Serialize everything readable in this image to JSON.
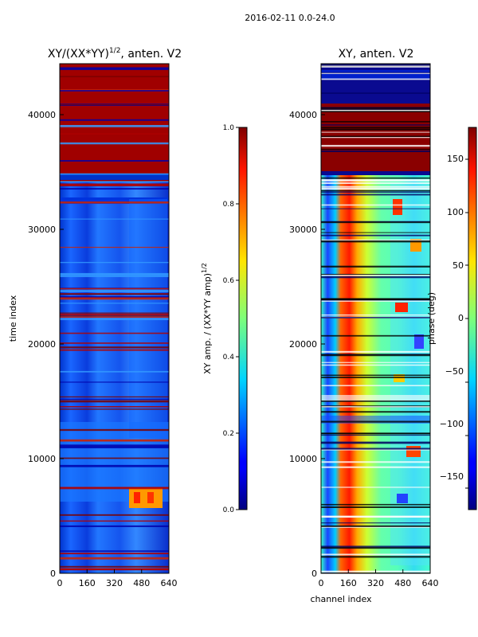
{
  "figure_title": "2016-02-11 0.0-24.0",
  "chart_data": [
    {
      "type": "heatmap",
      "title_main": "XY/(XX*YY)",
      "title_sup": "1/2",
      "title_rest": ", anten. V2",
      "xlabel": "",
      "ylabel": "time index",
      "xlim": [
        0,
        640
      ],
      "ylim": [
        0,
        44500
      ],
      "xticks": [
        0,
        160,
        320,
        480,
        640
      ],
      "yticks": [
        0,
        10000,
        20000,
        30000,
        40000
      ],
      "colorscale": "jet",
      "colorbar": {
        "label_main": "XY amp. / (XX*YY amp)",
        "label_sup": "1/2",
        "vmin": 0.0,
        "vmax": 1.0,
        "ticks": [
          "0.0",
          "0.2",
          "0.4",
          "0.6",
          "0.8",
          "1.0"
        ]
      },
      "description": "Normalized cross-polarization amplitude; mostly low (~0.15-0.3) from 0-35000, saturated near 1.0 above ~35000 with horizontal stripes."
    },
    {
      "type": "heatmap",
      "title_main": "XY, anten. V2",
      "xlabel": "channel index",
      "ylabel": "",
      "xlim": [
        0,
        640
      ],
      "ylim": [
        0,
        44500
      ],
      "xticks": [
        0,
        160,
        320,
        480,
        640
      ],
      "yticks": [
        0,
        10000,
        20000,
        30000,
        40000
      ],
      "colorscale": "jet",
      "colorbar": {
        "label_main": "phase (deg)",
        "vmin": -180,
        "vmax": 180,
        "ticks": [
          "−150",
          "−100",
          "−50",
          "0",
          "50",
          "100",
          "150"
        ]
      },
      "description": "Cross-polarization phase; cyan/green background with a red vertical band near channel 100, noisy region at channels 420-640."
    }
  ]
}
